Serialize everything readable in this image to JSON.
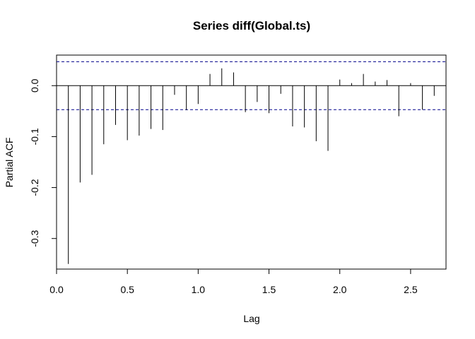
{
  "chart_data": {
    "type": "bar",
    "title": "Series  diff(Global.ts)",
    "xlabel": "Lag",
    "ylabel": "Partial ACF",
    "xlim": [
      0,
      2.75
    ],
    "ylim": [
      -0.36,
      0.06
    ],
    "x_ticks": [
      0.0,
      0.5,
      1.0,
      1.5,
      2.0,
      2.5
    ],
    "x_tick_labels": [
      "0.0",
      "0.5",
      "1.0",
      "1.5",
      "2.0",
      "2.5"
    ],
    "y_ticks": [
      -0.3,
      -0.2,
      -0.1,
      0.0
    ],
    "y_tick_labels": [
      "-0.3",
      "-0.2",
      "-0.1",
      "0.0"
    ],
    "confidence_bound": 0.047,
    "confidence_color": "#00008B",
    "lags": [
      0.0833,
      0.1667,
      0.25,
      0.3333,
      0.4167,
      0.5,
      0.5833,
      0.6667,
      0.75,
      0.8333,
      0.9167,
      1.0,
      1.0833,
      1.1667,
      1.25,
      1.3333,
      1.4167,
      1.5,
      1.5833,
      1.6667,
      1.75,
      1.8333,
      1.9167,
      2.0,
      2.0833,
      2.1667,
      2.25,
      2.3333,
      2.4167,
      2.5,
      2.5833,
      2.6667
    ],
    "values": [
      -0.35,
      -0.19,
      -0.175,
      -0.115,
      -0.077,
      -0.107,
      -0.098,
      -0.085,
      -0.087,
      -0.018,
      -0.048,
      -0.036,
      0.023,
      0.034,
      0.026,
      -0.052,
      -0.032,
      -0.054,
      -0.016,
      -0.08,
      -0.082,
      -0.109,
      -0.128,
      0.012,
      0.005,
      0.023,
      0.008,
      0.011,
      -0.06,
      0.005,
      -0.047,
      -0.02
    ]
  }
}
